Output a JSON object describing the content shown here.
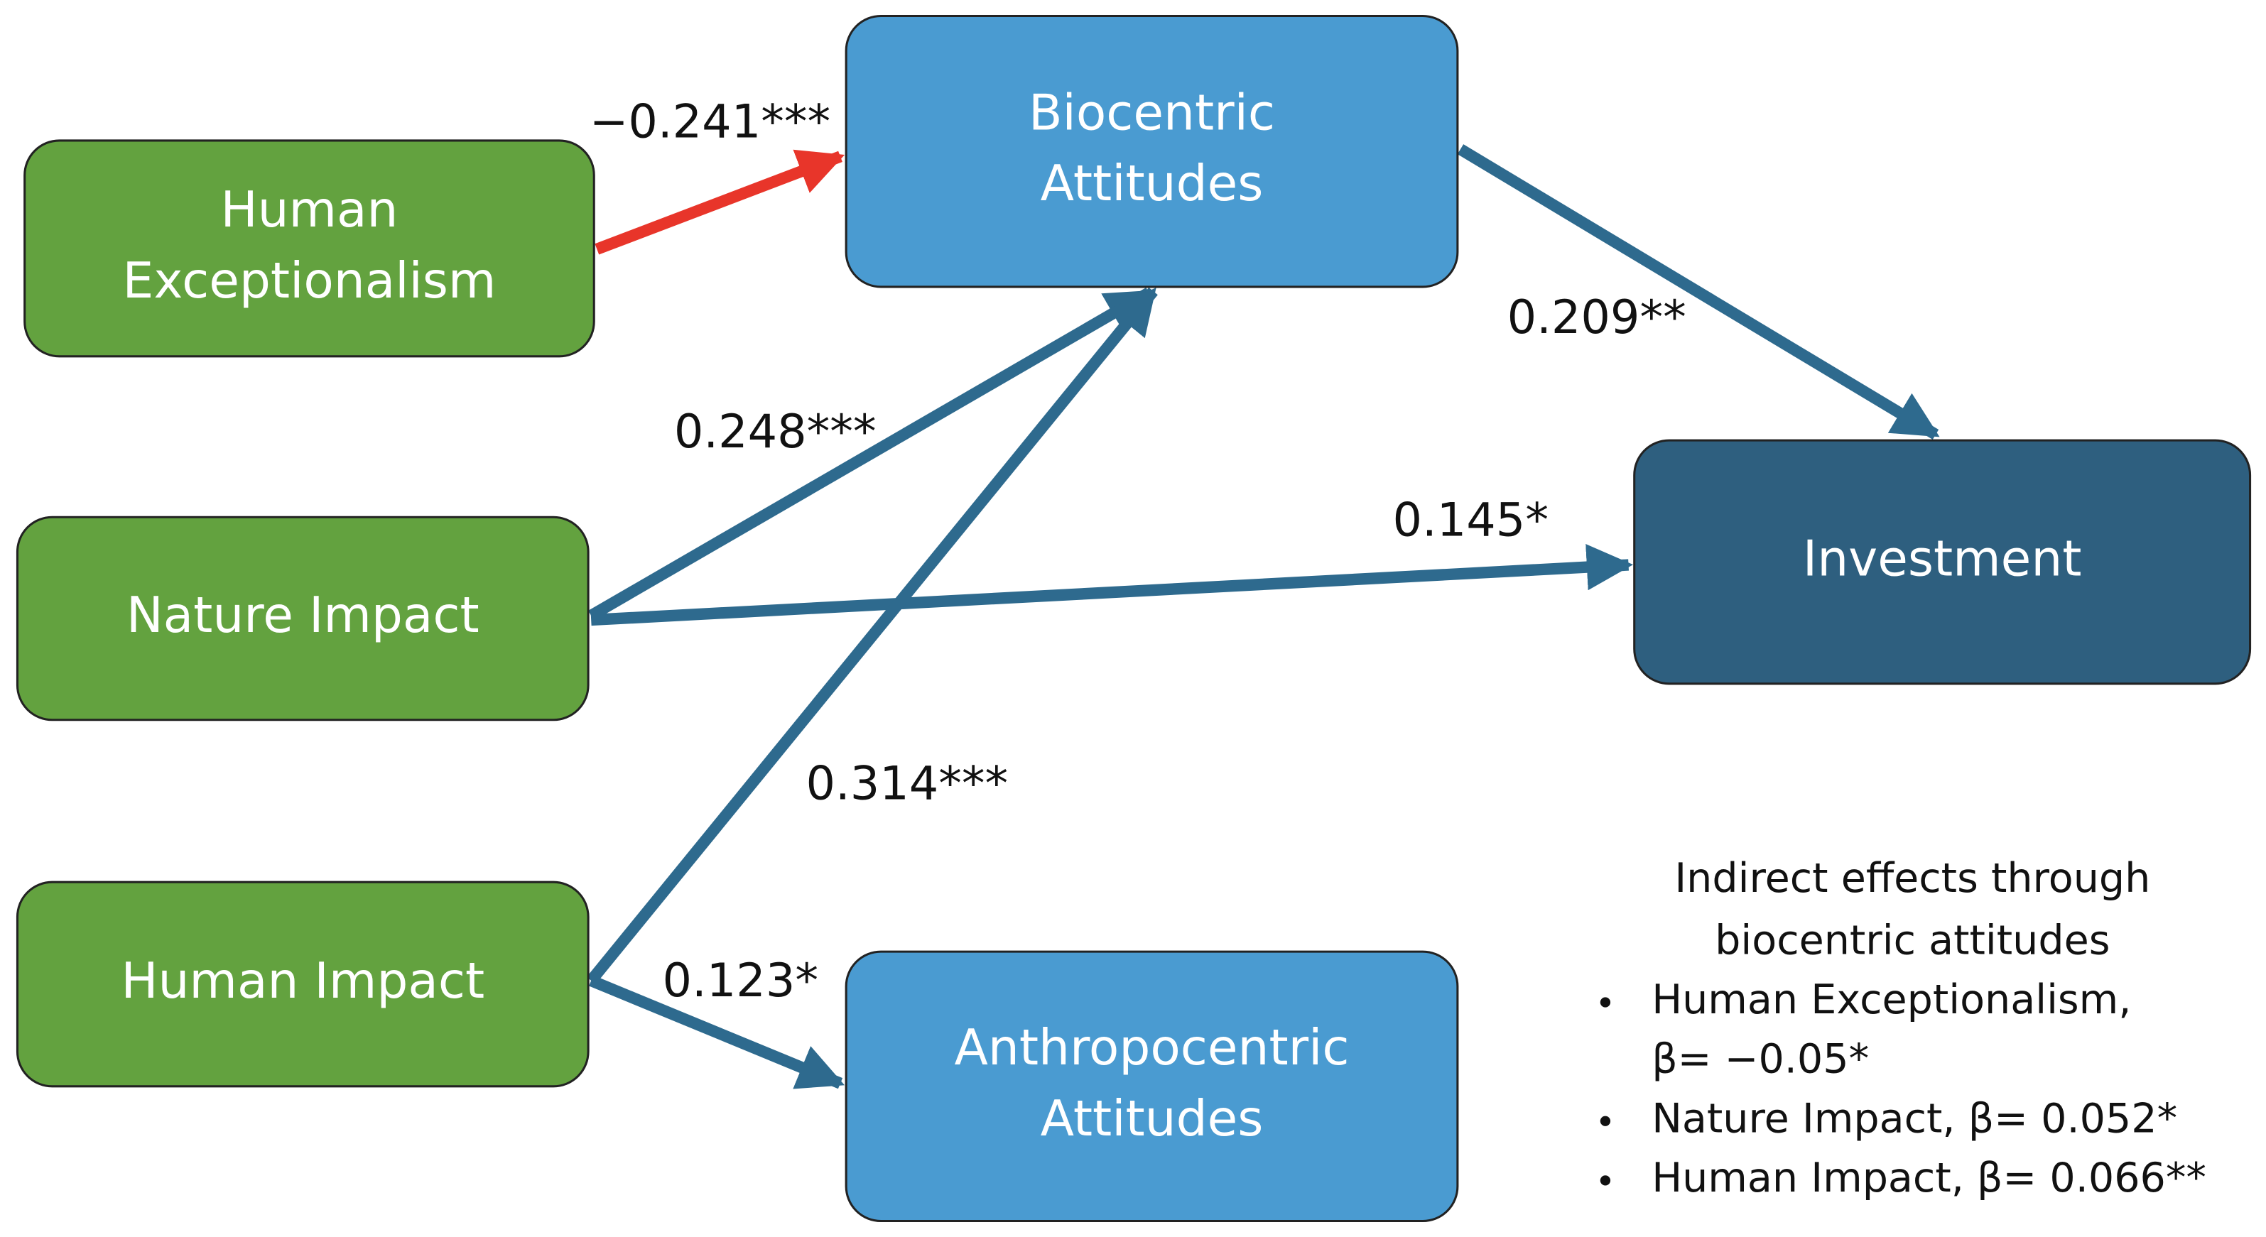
{
  "nodes": [
    {
      "label": [
        "Human",
        "Exceptionalism"
      ]
    },
    {
      "label": [
        "Biocentric",
        "Attitudes"
      ]
    },
    {
      "label": [
        "Nature Impact"
      ]
    },
    {
      "label": [
        "Human Impact"
      ]
    },
    {
      "label": [
        "Investment"
      ]
    },
    {
      "label": [
        "Anthropocentric",
        "Attitudes"
      ]
    }
  ],
  "edges": [
    {
      "label": "−0.241***"
    },
    {
      "label": "0.209**"
    },
    {
      "label": "0.248***"
    },
    {
      "label": "0.145*"
    },
    {
      "label": "0.314***"
    },
    {
      "label": "0.123*"
    }
  ],
  "note": {
    "title": [
      "Indirect effects through",
      "biocentric attitudes"
    ],
    "items": [
      [
        "Human Exceptionalism,",
        "β= −0.05*"
      ],
      [
        "Nature Impact, β= 0.052*"
      ],
      [
        "Human Impact, β= 0.066**"
      ]
    ]
  }
}
